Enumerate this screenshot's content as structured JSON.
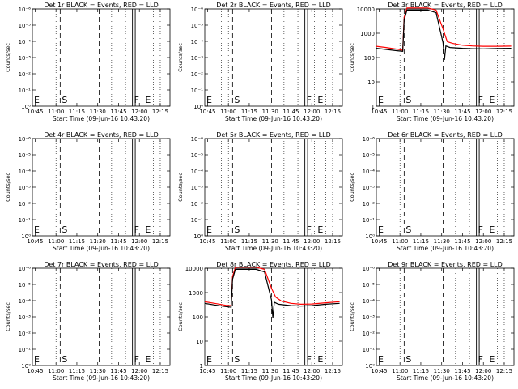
{
  "x_axis_label": "Start Time (09-Jun-16 10:43:20)",
  "y_axis_label": "Counts/sec",
  "x_ticks": [
    "10:45",
    "11:00",
    "11:15",
    "11:30",
    "11:45",
    "12:00",
    "12:15"
  ],
  "colors": {
    "events": "#000000",
    "lld": "#ff0000"
  },
  "chart_data": [
    {
      "type": "line",
      "title": "Det 1r BLACK = Events, RED = LLD",
      "xlabel": "Start Time (09-Jun-16 10:43:20)",
      "ylabel": "Counts/sec",
      "xlim": [
        "10:43",
        "12:22"
      ],
      "yscale": "log",
      "y_ticks": [
        "10⁰",
        "10⁻¹",
        "10⁻²",
        "10⁻³",
        "10⁻⁴",
        "10⁻⁵",
        "10⁻⁶"
      ],
      "markers": [
        {
          "label": "E",
          "time": "10:43"
        },
        {
          "label": "S",
          "time": "11:03"
        },
        {
          "label": "F",
          "time": "11:55"
        },
        {
          "label": "E",
          "time": "12:03"
        }
      ],
      "series": []
    },
    {
      "type": "line",
      "title": "Det 2r BLACK = Events, RED = LLD",
      "xlabel": "Start Time (09-Jun-16 10:43:20)",
      "ylabel": "Counts/sec",
      "xlim": [
        "10:43",
        "12:22"
      ],
      "yscale": "log",
      "y_ticks": [
        "10⁰",
        "10⁻¹",
        "10⁻²",
        "10⁻³",
        "10⁻⁴",
        "10⁻⁵",
        "10⁻⁶"
      ],
      "markers": [
        {
          "label": "E",
          "time": "10:43"
        },
        {
          "label": "S",
          "time": "11:03"
        },
        {
          "label": "F",
          "time": "11:55"
        },
        {
          "label": "E",
          "time": "12:03"
        }
      ],
      "series": []
    },
    {
      "type": "line",
      "title": "Det 3r BLACK = Events, RED = LLD",
      "xlabel": "Start Time (09-Jun-16 10:43:20)",
      "ylabel": "Counts/sec",
      "xlim": [
        "10:43",
        "12:22"
      ],
      "yscale": "log",
      "y_ticks": [
        "1",
        "10",
        "100",
        "1000",
        "10000"
      ],
      "markers": [
        {
          "label": "E",
          "time": "10:43"
        },
        {
          "label": "S",
          "time": "11:03"
        },
        {
          "label": "F",
          "time": "11:55"
        },
        {
          "label": "E",
          "time": "12:03"
        }
      ],
      "series": [
        {
          "x": [
            "10:43",
            "10:50",
            "10:58",
            "11:02",
            "11:03",
            "11:05",
            "11:10",
            "11:20",
            "11:26",
            "11:31",
            "11:34",
            "11:38",
            "11:45",
            "11:52",
            "12:00",
            "12:10",
            "12:20"
          ],
          "y": [
            290,
            260,
            220,
            200,
            4500,
            11000,
            11000,
            11000,
            9000,
            1500,
            450,
            380,
            320,
            300,
            290,
            290,
            295
          ]
        },
        {
          "x": [
            "10:43",
            "10:50",
            "10:58",
            "11:02",
            "11:03",
            "11:05",
            "11:10",
            "11:20",
            "11:26",
            "11:31",
            "11:32",
            "11:33",
            "11:36",
            "11:45",
            "11:52",
            "12:00",
            "12:10",
            "12:20"
          ],
          "y": [
            240,
            215,
            190,
            180,
            3500,
            9000,
            9000,
            9000,
            7000,
            400,
            80,
            300,
            260,
            240,
            230,
            225,
            235,
            240
          ]
        }
      ]
    },
    {
      "type": "line",
      "title": "Det 4r BLACK = Events, RED = LLD",
      "xlabel": "Start Time (09-Jun-16 10:43:20)",
      "ylabel": "Counts/sec",
      "xlim": [
        "10:43",
        "12:22"
      ],
      "yscale": "log",
      "y_ticks": [
        "10⁰",
        "10⁻¹",
        "10⁻²",
        "10⁻³",
        "10⁻⁴",
        "10⁻⁵",
        "10⁻⁶"
      ],
      "markers": [
        {
          "label": "E",
          "time": "10:43"
        },
        {
          "label": "S",
          "time": "11:03"
        },
        {
          "label": "F",
          "time": "11:55"
        },
        {
          "label": "E",
          "time": "12:03"
        }
      ],
      "series": []
    },
    {
      "type": "line",
      "title": "Det 5r BLACK = Events, RED = LLD",
      "xlabel": "Start Time (09-Jun-16 10:43:20)",
      "ylabel": "Counts/sec",
      "xlim": [
        "10:43",
        "12:22"
      ],
      "yscale": "log",
      "y_ticks": [
        "10⁰",
        "10⁻¹",
        "10⁻²",
        "10⁻³",
        "10⁻⁴",
        "10⁻⁵",
        "10⁻⁶"
      ],
      "markers": [
        {
          "label": "E",
          "time": "10:43"
        },
        {
          "label": "S",
          "time": "11:03"
        },
        {
          "label": "F",
          "time": "11:55"
        },
        {
          "label": "E",
          "time": "12:03"
        }
      ],
      "series": []
    },
    {
      "type": "line",
      "title": "Det 6r BLACK = Events, RED = LLD",
      "xlabel": "Start Time (09-Jun-16 10:43:20)",
      "ylabel": "Counts/sec",
      "xlim": [
        "10:43",
        "12:22"
      ],
      "yscale": "log",
      "y_ticks": [
        "10⁰",
        "10⁻¹",
        "10⁻²",
        "10⁻³",
        "10⁻⁴",
        "10⁻⁵",
        "10⁻⁶"
      ],
      "markers": [
        {
          "label": "E",
          "time": "10:43"
        },
        {
          "label": "S",
          "time": "11:03"
        },
        {
          "label": "F",
          "time": "11:55"
        },
        {
          "label": "E",
          "time": "12:03"
        }
      ],
      "series": []
    },
    {
      "type": "line",
      "title": "Det 7r BLACK = Events, RED = LLD",
      "xlabel": "Start Time (09-Jun-16 10:43:20)",
      "ylabel": "Counts/sec",
      "xlim": [
        "10:43",
        "12:22"
      ],
      "yscale": "log",
      "y_ticks": [
        "10⁰",
        "10⁻¹",
        "10⁻²",
        "10⁻³",
        "10⁻⁴",
        "10⁻⁵",
        "10⁻⁶"
      ],
      "markers": [
        {
          "label": "E",
          "time": "10:43"
        },
        {
          "label": "S",
          "time": "11:03"
        },
        {
          "label": "F",
          "time": "11:55"
        },
        {
          "label": "E",
          "time": "12:03"
        }
      ],
      "series": []
    },
    {
      "type": "line",
      "title": "Det 8r BLACK = Events, RED = LLD",
      "xlabel": "Start Time (09-Jun-16 10:43:20)",
      "ylabel": "Counts/sec",
      "xlim": [
        "10:43",
        "12:22"
      ],
      "yscale": "log",
      "y_ticks": [
        "1",
        "10",
        "100",
        "1000",
        "10000"
      ],
      "markers": [
        {
          "label": "E",
          "time": "10:43"
        },
        {
          "label": "S",
          "time": "11:03"
        },
        {
          "label": "F",
          "time": "11:55"
        },
        {
          "label": "E",
          "time": "12:03"
        }
      ],
      "series": [
        {
          "x": [
            "10:43",
            "10:50",
            "10:58",
            "11:02",
            "11:03",
            "11:05",
            "11:10",
            "11:20",
            "11:26",
            "11:31",
            "11:34",
            "11:38",
            "11:45",
            "11:52",
            "12:00",
            "12:10",
            "12:20"
          ],
          "y": [
            420,
            360,
            300,
            290,
            4500,
            11000,
            11000,
            11000,
            9000,
            1500,
            650,
            450,
            360,
            330,
            340,
            380,
            420
          ]
        },
        {
          "x": [
            "10:43",
            "10:50",
            "10:58",
            "11:02",
            "11:03",
            "11:05",
            "11:10",
            "11:20",
            "11:26",
            "11:31",
            "11:32",
            "11:33",
            "11:36",
            "11:45",
            "11:52",
            "12:00",
            "12:10",
            "12:20"
          ],
          "y": [
            360,
            310,
            265,
            250,
            3500,
            9000,
            9000,
            9000,
            7000,
            500,
            90,
            400,
            330,
            290,
            280,
            290,
            330,
            360
          ]
        }
      ]
    },
    {
      "type": "line",
      "title": "Det 9r BLACK = Events, RED = LLD",
      "xlabel": "Start Time (09-Jun-16 10:43:20)",
      "ylabel": "Counts/sec",
      "xlim": [
        "10:43",
        "12:22"
      ],
      "yscale": "log",
      "y_ticks": [
        "10⁰",
        "10⁻¹",
        "10⁻²",
        "10⁻³",
        "10⁻⁴",
        "10⁻⁵",
        "10⁻⁶"
      ],
      "markers": [
        {
          "label": "E",
          "time": "10:43"
        },
        {
          "label": "S",
          "time": "11:03"
        },
        {
          "label": "F",
          "time": "11:55"
        },
        {
          "label": "E",
          "time": "12:03"
        }
      ],
      "series": []
    }
  ]
}
